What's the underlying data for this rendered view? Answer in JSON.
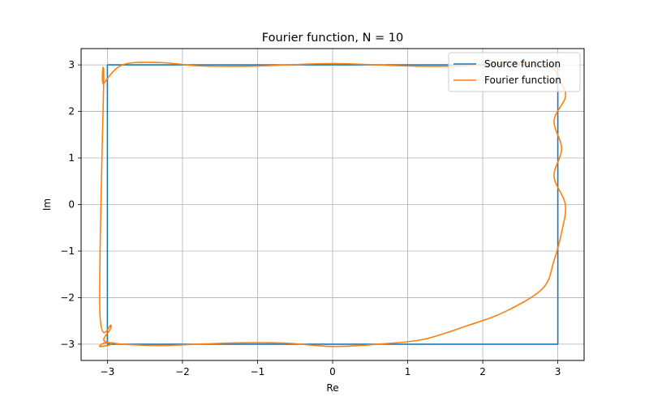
{
  "chart_data": {
    "type": "line",
    "title": "Fourier function, N = 10",
    "xlabel": "Re",
    "ylabel": "Im",
    "xlim": [
      -3.35,
      3.35
    ],
    "ylim": [
      -3.35,
      3.35
    ],
    "xticks": [
      -3,
      -2,
      -1,
      0,
      1,
      2,
      3
    ],
    "yticks": [
      -3,
      -2,
      -1,
      0,
      1,
      2,
      3
    ],
    "xtick_labels": [
      "−3",
      "−2",
      "−1",
      "0",
      "1",
      "2",
      "3"
    ],
    "ytick_labels": [
      "−3",
      "−2",
      "−1",
      "0",
      "1",
      "2",
      "3"
    ],
    "grid": true,
    "legend_position": "top-right",
    "series": [
      {
        "name": "Source function",
        "color": "#1f77b4",
        "x": [
          -3,
          3,
          3,
          -3,
          -3
        ],
        "y": [
          3,
          3,
          -3,
          -3,
          3
        ]
      },
      {
        "name": "Fourier function",
        "color": "#ff7f0e",
        "x": [
          -3.05,
          -2.8,
          -2.3,
          -1.8,
          -1.2,
          -0.6,
          0,
          0.6,
          1.2,
          1.8,
          2.3,
          2.8,
          2.95,
          3.05,
          3.1,
          2.95,
          3.05,
          2.95,
          3.1,
          3.05,
          2.95,
          2.8,
          2.3,
          1.8,
          1.2,
          0.6,
          0,
          -0.6,
          -1.2,
          -1.8,
          -2.3,
          -2.8,
          -2.95,
          -3.05,
          -3.1,
          -2.95,
          -3.05,
          -2.95,
          -3.1,
          -3.05
        ],
        "y": [
          2.6,
          3.0,
          3.05,
          2.98,
          2.97,
          3.0,
          3.03,
          3.0,
          2.97,
          2.98,
          3.05,
          3.0,
          2.9,
          2.6,
          2.3,
          1.8,
          1.2,
          0.6,
          0,
          -0.6,
          -1.2,
          -1.8,
          -2.3,
          -2.6,
          -2.9,
          -3.0,
          -3.05,
          -2.98,
          -2.97,
          -3.0,
          -3.03,
          -3.0,
          -2.97,
          -2.98,
          -3.05,
          -3.0,
          -2.9,
          -2.6,
          -2.3,
          2.6
        ]
      }
    ]
  }
}
